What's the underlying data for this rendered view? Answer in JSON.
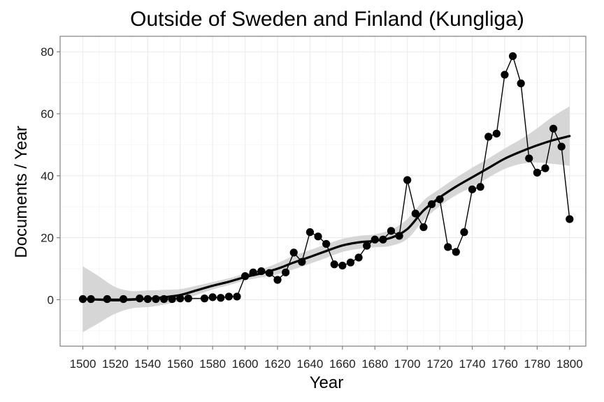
{
  "chart_data": {
    "type": "line",
    "title": "Outside of Sweden and Finland (Kungliga)",
    "xlabel": "Year",
    "ylabel": "Documents / Year",
    "xlim": [
      1486,
      1810
    ],
    "ylim": [
      -15,
      85
    ],
    "x_ticks": [
      "1500",
      "1520",
      "1540",
      "1560",
      "1580",
      "1600",
      "1620",
      "1640",
      "1660",
      "1680",
      "1700",
      "1720",
      "1740",
      "1760",
      "1780",
      "1800"
    ],
    "y_ticks": [
      "0",
      "20",
      "40",
      "60",
      "80"
    ],
    "grid": true,
    "legend": "none",
    "series": [
      {
        "x": [
          1500,
          1505,
          1515,
          1525,
          1535,
          1540,
          1545,
          1550,
          1555,
          1560,
          1565,
          1575,
          1580,
          1585,
          1590,
          1595,
          1600,
          1605,
          1610,
          1615,
          1620,
          1625,
          1630,
          1635,
          1640,
          1645,
          1650,
          1655,
          1660,
          1665,
          1670,
          1675,
          1680,
          1685,
          1690,
          1695,
          1700,
          1705,
          1710,
          1715,
          1720,
          1725,
          1730,
          1735,
          1740,
          1745,
          1750,
          1755,
          1760,
          1765,
          1770,
          1775,
          1780,
          1785,
          1790,
          1795,
          1800
        ],
        "y": [
          0.2,
          0.2,
          0.2,
          0.2,
          0.4,
          0.2,
          0.2,
          0.2,
          0.2,
          0.4,
          0.4,
          0.4,
          0.8,
          0.6,
          1.0,
          1.0,
          7.6,
          8.8,
          9.2,
          8.6,
          6.4,
          8.8,
          15.2,
          12.2,
          21.8,
          20.4,
          18.0,
          11.4,
          11.0,
          12.0,
          13.6,
          17.4,
          19.4,
          19.4,
          22.2,
          20.6,
          38.6,
          27.8,
          23.4,
          30.8,
          32.4,
          17.0,
          15.4,
          21.8,
          35.6,
          36.4,
          52.6,
          53.6,
          72.6,
          78.6,
          69.8,
          45.6,
          41.0,
          42.4,
          55.2,
          49.4,
          26.0
        ]
      }
    ],
    "smooth": {
      "x": [
        1500,
        1510,
        1520,
        1530,
        1540,
        1550,
        1560,
        1570,
        1580,
        1590,
        1600,
        1610,
        1620,
        1630,
        1640,
        1650,
        1660,
        1670,
        1680,
        1690,
        1700,
        1710,
        1720,
        1730,
        1740,
        1750,
        1760,
        1770,
        1780,
        1790,
        1800
      ],
      "y": [
        0.2,
        0.0,
        -0.2,
        0.0,
        0.3,
        0.8,
        1.5,
        3.0,
        4.5,
        5.8,
        7.3,
        8.5,
        10.0,
        12.0,
        13.8,
        15.7,
        17.5,
        18.5,
        19.0,
        20.0,
        22.8,
        28.8,
        33.0,
        36.5,
        39.5,
        42.5,
        45.5,
        47.8,
        49.8,
        51.5,
        52.8
      ],
      "lower": [
        -10.5,
        -7.5,
        -4.5,
        -2.8,
        -2.4,
        -1.6,
        -0.4,
        1.5,
        3.3,
        4.7,
        6.2,
        7.2,
        8.2,
        9.8,
        11.6,
        13.5,
        15.4,
        16.4,
        16.9,
        17.4,
        19.6,
        25.6,
        30.2,
        33.7,
        36.4,
        39.4,
        42.2,
        43.8,
        44.3,
        43.8,
        43.2
      ],
      "upper": [
        10.8,
        7.5,
        4.1,
        2.8,
        3.0,
        3.2,
        3.4,
        4.5,
        5.7,
        6.9,
        8.4,
        9.8,
        11.8,
        14.2,
        16.0,
        17.9,
        19.6,
        20.6,
        21.1,
        22.6,
        26.0,
        32.0,
        35.8,
        39.3,
        42.6,
        45.6,
        48.8,
        51.8,
        55.3,
        59.2,
        62.4
      ]
    }
  }
}
